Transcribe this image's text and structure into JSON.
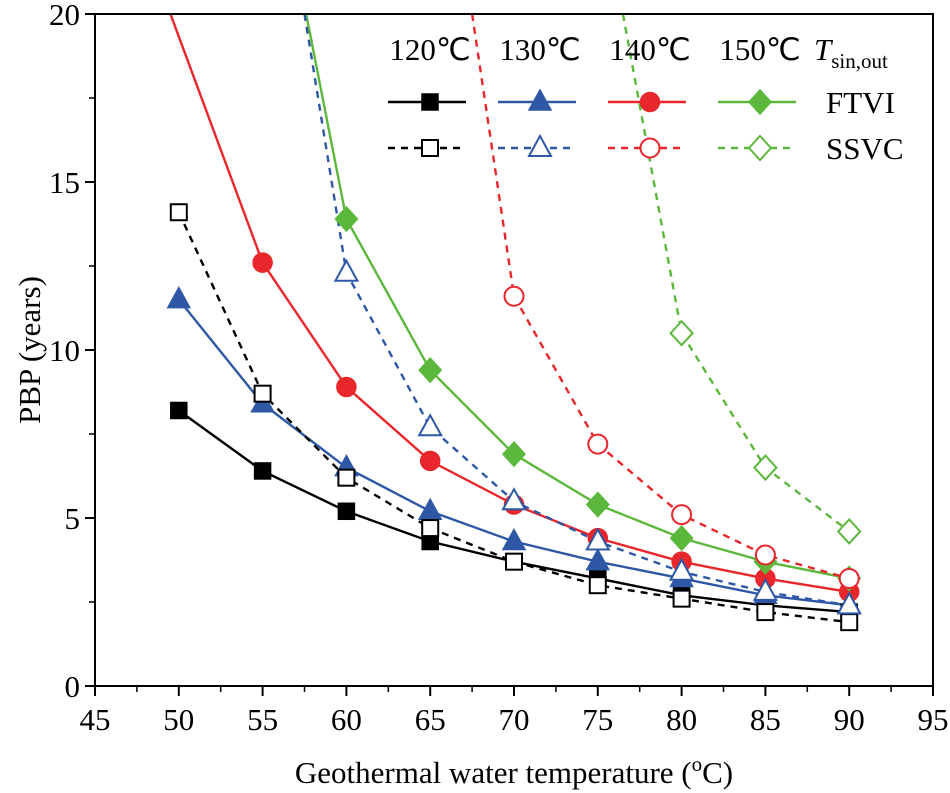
{
  "chart_data": {
    "type": "line",
    "title": "",
    "xlabel": "Geothermal water temperature (",
    "xlabel_sup": "o",
    "xlabel_tail": "C)",
    "ylabel": "PBP (years)",
    "xlim": [
      45,
      95
    ],
    "ylim": [
      0,
      20
    ],
    "x_ticks": [
      45,
      50,
      55,
      60,
      65,
      70,
      75,
      80,
      85,
      90,
      95
    ],
    "x_tick_labels": [
      "45",
      "50",
      "55",
      "60",
      "65",
      "70",
      "75",
      "80",
      "85",
      "90",
      "95"
    ],
    "y_ticks": [
      0,
      5,
      10,
      15,
      20
    ],
    "y_tick_labels": [
      "0",
      "5",
      "10",
      "15",
      "20"
    ],
    "grid": false,
    "legend": {
      "position": "top-right",
      "column_headers": [
        "120℃",
        "130℃",
        "140℃",
        "150℃"
      ],
      "variable_label": "T",
      "variable_subscript": "sin,out",
      "row_labels": [
        "FTVI",
        "SSVC"
      ]
    },
    "series": [
      {
        "name": "FTVI 120℃",
        "color": "#000000",
        "style": "solid",
        "marker": "square",
        "filled": true,
        "x": [
          50,
          55,
          60,
          65,
          70,
          75,
          80,
          85,
          90
        ],
        "y": [
          8.2,
          6.4,
          5.2,
          4.3,
          3.7,
          3.2,
          2.7,
          2.4,
          2.2
        ]
      },
      {
        "name": "FTVI 130℃",
        "color": "#2e58a6",
        "style": "solid",
        "marker": "triangle",
        "filled": true,
        "x": [
          50,
          55,
          60,
          65,
          70,
          75,
          80,
          85,
          90
        ],
        "y": [
          11.5,
          8.4,
          6.5,
          5.2,
          4.3,
          3.7,
          3.2,
          2.7,
          2.4
        ]
      },
      {
        "name": "FTVI 140℃",
        "color": "#e8262b",
        "style": "solid",
        "marker": "circle",
        "filled": true,
        "x": [
          49.5,
          55,
          60,
          65,
          70,
          75,
          80,
          85,
          90
        ],
        "y": [
          20,
          12.6,
          8.9,
          6.7,
          5.4,
          4.4,
          3.7,
          3.2,
          2.8
        ]
      },
      {
        "name": "FTVI 150℃",
        "color": "#5cb83c",
        "style": "solid",
        "marker": "diamond",
        "filled": true,
        "x": [
          57.6,
          60,
          65,
          70,
          75,
          80,
          85,
          90
        ],
        "y": [
          20,
          13.9,
          9.4,
          6.9,
          5.4,
          4.4,
          3.7,
          3.2
        ]
      },
      {
        "name": "SSVC 120℃",
        "color": "#000000",
        "style": "dashed",
        "marker": "square",
        "filled": false,
        "x": [
          50,
          55,
          60,
          65,
          70,
          75,
          80,
          85,
          90
        ],
        "y": [
          14.1,
          8.7,
          6.2,
          4.7,
          3.7,
          3.0,
          2.6,
          2.2,
          1.9
        ]
      },
      {
        "name": "SSVC 130℃",
        "color": "#2e58a6",
        "style": "dashed",
        "marker": "triangle",
        "filled": false,
        "x": [
          57.5,
          60,
          65,
          70,
          75,
          80,
          85,
          90
        ],
        "y": [
          20,
          12.3,
          7.7,
          5.5,
          4.3,
          3.4,
          2.8,
          2.4
        ]
      },
      {
        "name": "SSVC 140℃",
        "color": "#e8262b",
        "style": "dashed",
        "marker": "circle",
        "filled": false,
        "x": [
          67.5,
          70,
          75,
          80,
          85,
          90
        ],
        "y": [
          20,
          11.6,
          7.2,
          5.1,
          3.9,
          3.2
        ]
      },
      {
        "name": "SSVC 150℃",
        "color": "#5cb83c",
        "style": "dashed",
        "marker": "diamond",
        "filled": false,
        "x": [
          76.5,
          80,
          85,
          90
        ],
        "y": [
          20,
          10.5,
          6.5,
          4.6
        ]
      }
    ]
  }
}
